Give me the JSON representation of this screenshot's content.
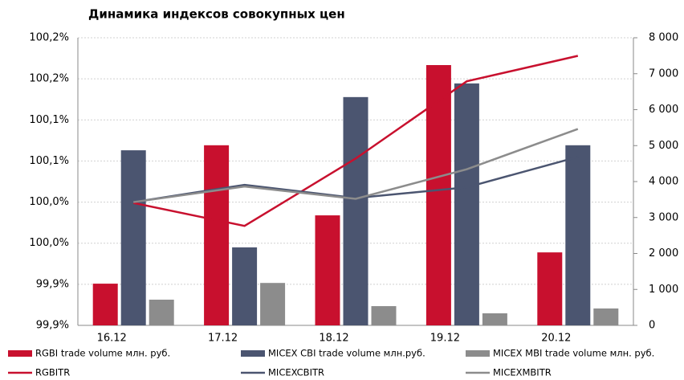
{
  "chart_data": {
    "type": "bar-line",
    "title": "Динамика индексов совокупных цен",
    "categories": [
      "16.12",
      "17.12",
      "18.12",
      "19.12",
      "20.12"
    ],
    "series": [
      {
        "name": "RGBI trade volume млн. руб.",
        "type": "bar",
        "axis": "y2",
        "color": "#c8102e",
        "values": [
          1160,
          5010,
          3060,
          7240,
          2030
        ]
      },
      {
        "name": "MICEX CBI trade volume млн.руб.",
        "type": "bar",
        "axis": "y2",
        "color": "#4b5570",
        "values": [
          4870,
          2170,
          6350,
          6730,
          5010
        ]
      },
      {
        "name": "MICEX MBI trade volume млн. руб.",
        "type": "bar",
        "axis": "y2",
        "color": "#8c8c8c",
        "values": [
          715,
          1180,
          535,
          335,
          470
        ]
      },
      {
        "name": "RGBITR",
        "type": "line",
        "axis": "y",
        "color": "#c8102e",
        "values": [
          99.999,
          99.971,
          100.053,
          100.147,
          100.178
        ]
      },
      {
        "name": "MICEXCBITR",
        "type": "line",
        "axis": "y",
        "color": "#4b5570",
        "values": [
          100.0,
          100.021,
          100.005,
          100.018,
          100.055
        ]
      },
      {
        "name": "MICEXMBITR",
        "type": "line",
        "axis": "y",
        "color": "#8c8c8c",
        "values": [
          100.0,
          100.019,
          100.004,
          100.04,
          100.089
        ]
      }
    ],
    "ylim": [
      99.85,
      100.2
    ],
    "yticks": [
      {
        "value": 99.85,
        "label": "99,9%"
      },
      {
        "value": 99.9,
        "label": "99,9%"
      },
      {
        "value": 99.95,
        "label": "100,0%"
      },
      {
        "value": 100.0,
        "label": "100,0%"
      },
      {
        "value": 100.05,
        "label": "100,1%"
      },
      {
        "value": 100.1,
        "label": "100,1%"
      },
      {
        "value": 100.15,
        "label": "100,2%"
      },
      {
        "value": 100.2,
        "label": "100,2%"
      }
    ],
    "y2lim": [
      0,
      8000
    ],
    "y2ticks": [
      0,
      {
        "value": 1000,
        "label": "1 000"
      },
      {
        "value": 2000,
        "label": "2 000"
      },
      {
        "value": 3000,
        "label": "3 000"
      },
      {
        "value": 4000,
        "label": "4 000"
      },
      {
        "value": 5000,
        "label": "5 000"
      },
      {
        "value": 6000,
        "label": "6 000"
      },
      {
        "value": 7000,
        "label": "7 000"
      },
      {
        "value": 8000,
        "label": "8 000"
      }
    ],
    "grid": true,
    "legend": "bottom"
  }
}
